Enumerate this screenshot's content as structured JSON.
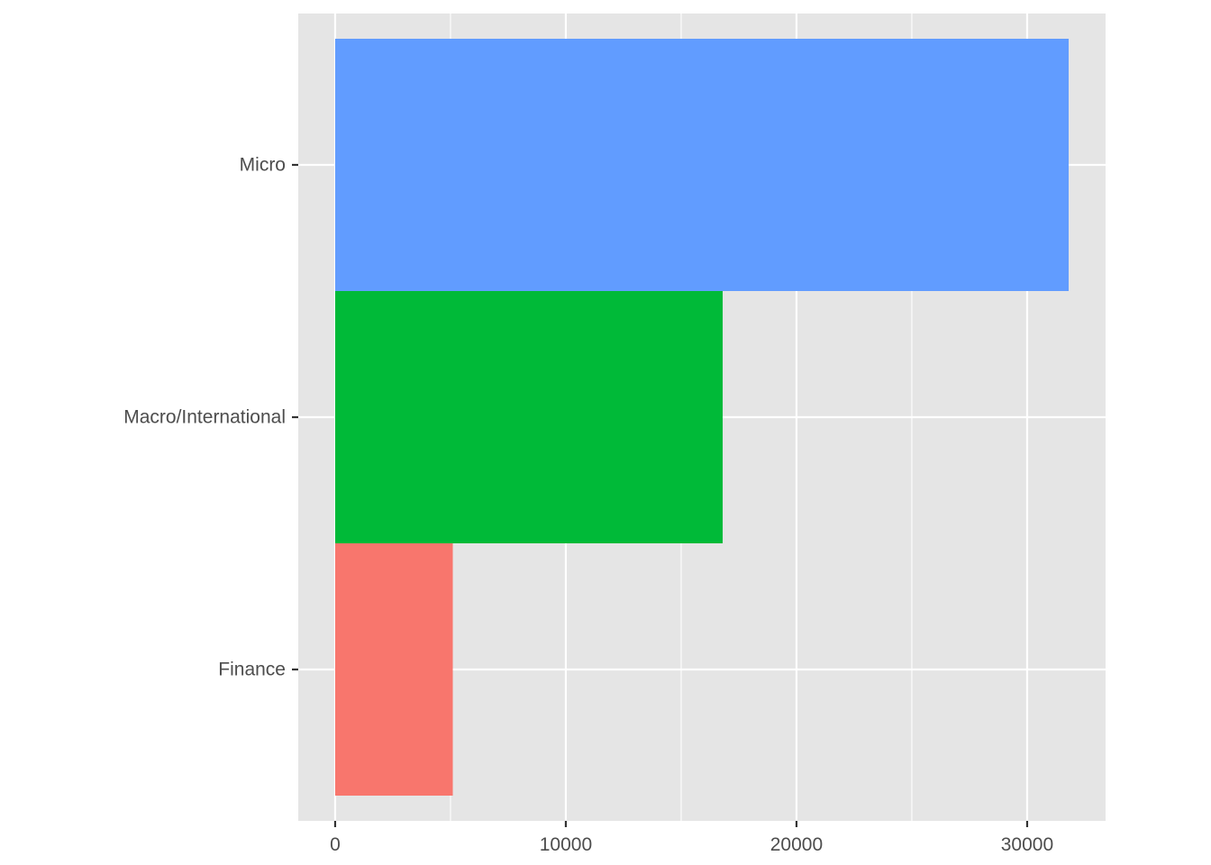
{
  "chart_data": {
    "type": "bar",
    "orientation": "horizontal",
    "title": "",
    "xlabel": "",
    "ylabel": "",
    "categories": [
      "Finance",
      "Macro/International",
      "Micro"
    ],
    "values": [
      5100,
      16800,
      31800
    ],
    "bar_colors": [
      "#F8766D",
      "#00BA38",
      "#619CFF"
    ],
    "xlim": [
      -1600,
      33400
    ],
    "x_ticks": [
      0,
      10000,
      20000,
      30000
    ],
    "x_tick_labels": [
      "0",
      "10000",
      "20000",
      "30000"
    ],
    "x_minor_ticks": [
      5000,
      15000,
      25000
    ],
    "grid": true,
    "legend": "none",
    "panel_background": "#E5E5E5",
    "grid_color": "#FFFFFF"
  }
}
